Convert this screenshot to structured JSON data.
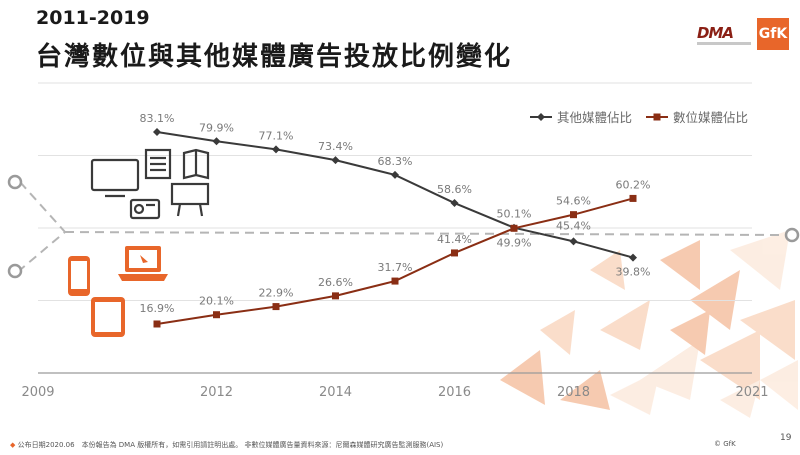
{
  "header": {
    "subtitle": "2011-2019",
    "title": "台灣數位與其他媒體廣告投放比例變化",
    "logo_dma": "DMA",
    "logo_gfk": "GfK"
  },
  "footer": {
    "text": "公布日期2020.06　本份報告為 DMA 版權所有，如需引用請註明出處。 非數位媒體廣告量資料來源：尼爾森媒體研究廣告監測服務(AIS)",
    "copyright": "© GfK",
    "page": "19"
  },
  "colors": {
    "other": "#3a3a3a",
    "digital": "#8a2e14",
    "grid": "#e2e2e2",
    "accent": "#f0a070"
  },
  "icons": [
    "tv-icon",
    "newspaper-icon",
    "radio-icon",
    "billboard-icon",
    "smartphone-icon",
    "laptop-icon",
    "tablet-icon"
  ],
  "chart_data": {
    "type": "line",
    "x_ticks": [
      2009,
      2012,
      2014,
      2016,
      2018,
      2021
    ],
    "xlim": [
      2009,
      2021
    ],
    "ylim": [
      0,
      100
    ],
    "grid": true,
    "legend_position": "top-right",
    "x": [
      2011,
      2012,
      2013,
      2014,
      2015,
      2016,
      2017,
      2018,
      2019
    ],
    "series": [
      {
        "name": "其他媒體佔比",
        "color": "#3a3a3a",
        "values": [
          83.1,
          79.9,
          77.1,
          73.4,
          68.3,
          58.6,
          50.1,
          45.4,
          39.8
        ],
        "labels": [
          "83.1%",
          "79.9%",
          "77.1%",
          "73.4%",
          "68.3%",
          "58.6%",
          "50.1%",
          "45.4%",
          "39.8%"
        ]
      },
      {
        "name": "數位媒體佔比",
        "color": "#8a2e14",
        "values": [
          16.9,
          20.1,
          22.9,
          26.6,
          31.7,
          41.4,
          49.9,
          54.6,
          60.2
        ],
        "labels": [
          "16.9%",
          "20.1%",
          "22.9%",
          "26.6%",
          "31.7%",
          "41.4%",
          "49.9%",
          "54.6%",
          "60.2%"
        ]
      }
    ]
  }
}
